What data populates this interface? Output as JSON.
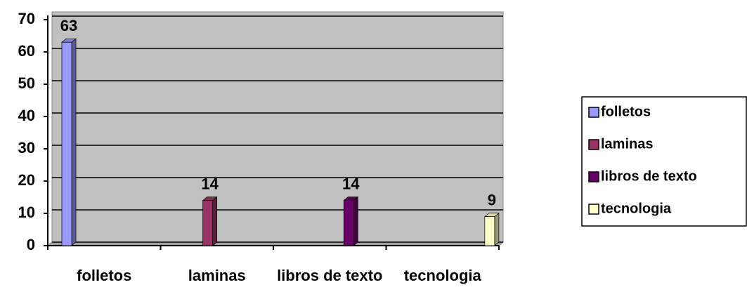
{
  "chart_data": {
    "type": "bar",
    "categories": [
      "folletos",
      "laminas",
      "libros de texto",
      "tecnologia"
    ],
    "series": [
      {
        "name": "folletos",
        "color": "#9999ff",
        "values": [
          63,
          null,
          null,
          null
        ]
      },
      {
        "name": "laminas",
        "color": "#993366",
        "values": [
          null,
          14,
          null,
          null
        ]
      },
      {
        "name": "libros de texto",
        "color": "#660066",
        "values": [
          null,
          null,
          14,
          null
        ]
      },
      {
        "name": "tecnologia",
        "color": "#ffffcc",
        "values": [
          null,
          null,
          null,
          9
        ]
      }
    ],
    "ylim": [
      0,
      70
    ],
    "yticks": [
      0,
      10,
      20,
      30,
      40,
      50,
      60,
      70
    ],
    "grid": true,
    "legend": "right"
  }
}
